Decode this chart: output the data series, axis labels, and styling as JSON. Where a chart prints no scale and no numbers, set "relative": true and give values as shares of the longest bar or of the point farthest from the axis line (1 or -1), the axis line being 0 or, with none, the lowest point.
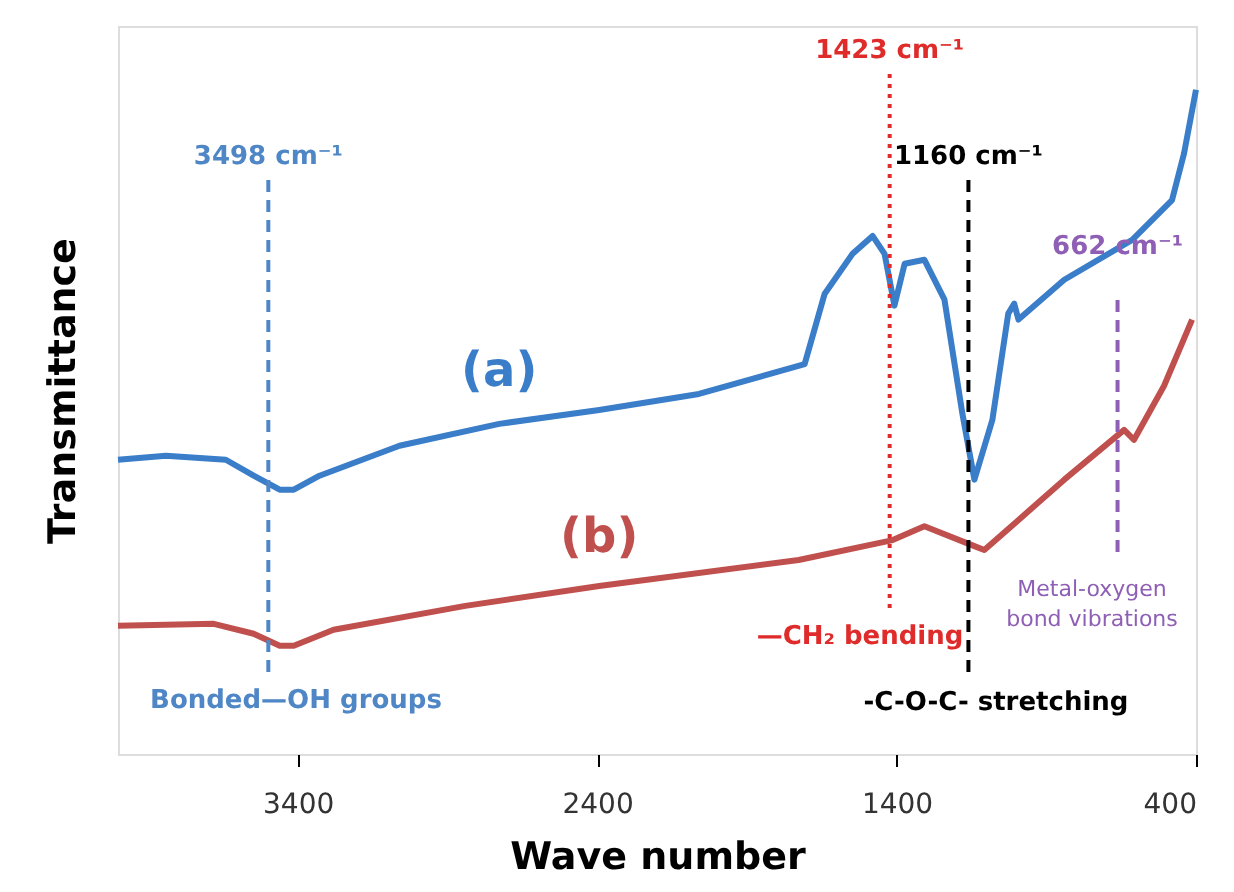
{
  "chart_data": {
    "type": "line",
    "xlabel": "Wave number",
    "ylabel": "Transmittance",
    "relative": true,
    "tick_labels": "x",
    "legend": false,
    "grid": false,
    "marker": "none",
    "line_style": "solid",
    "xlim": [
      4000,
      400
    ],
    "xticks": [
      {
        "value": 3400,
        "label": "3400"
      },
      {
        "value": 2400,
        "label": "2400"
      },
      {
        "value": 1400,
        "label": "1400"
      },
      400
    ],
    "series": [
      {
        "name": "(a)",
        "color": "#3a7dc9",
        "x": [
          4000,
          3840,
          3640,
          3547,
          3460,
          3413,
          3327,
          3060,
          2727,
          2393,
          2060,
          1707,
          1640,
          1547,
          1480,
          1440,
          1407,
          1373,
          1307,
          1240,
          1180,
          1140,
          1080,
          1027,
          1007,
          993,
          840,
          613,
          480,
          440,
          400
        ],
        "values": [
          0.443,
          0.449,
          0.443,
          0.419,
          0.398,
          0.398,
          0.419,
          0.464,
          0.497,
          0.518,
          0.542,
          0.587,
          0.693,
          0.753,
          0.78,
          0.753,
          0.675,
          0.738,
          0.744,
          0.684,
          0.512,
          0.413,
          0.503,
          0.663,
          0.678,
          0.654,
          0.714,
          0.774,
          0.834,
          0.904,
          1.0
        ]
      },
      {
        "name": "(b)",
        "color": "#c0504d",
        "x": [
          4000,
          3680,
          3547,
          3460,
          3413,
          3280,
          2840,
          2393,
          1727,
          1413,
          1307,
          1140,
          1107,
          840,
          640,
          607,
          507,
          413
        ],
        "values": [
          0.193,
          0.196,
          0.181,
          0.163,
          0.163,
          0.187,
          0.223,
          0.253,
          0.292,
          0.322,
          0.343,
          0.313,
          0.307,
          0.413,
          0.488,
          0.473,
          0.554,
          0.654
        ]
      }
    ],
    "ref_lines": [
      {
        "axis": "x",
        "value": 3498,
        "label": "3498 cm⁻¹",
        "color": "#4f86c6",
        "line_style": "dashed"
      },
      {
        "axis": "x",
        "value": 1423,
        "label": "1423 cm⁻¹",
        "color": "#e02b2b",
        "line_style": "dotted"
      },
      {
        "axis": "x",
        "value": 1160,
        "label": "1160 cm⁻¹",
        "color": "#000000",
        "line_style": "dashed"
      },
      {
        "axis": "x",
        "value": 662,
        "label": "662 cm⁻¹",
        "color": "#8e5fb5",
        "line_style": "dashed"
      }
    ],
    "annotations": [
      "Bonded—OH groups",
      "—CH₂ bending",
      "-C-O-C- stretching",
      "Metal-oxygen",
      "bond vibrations"
    ]
  }
}
